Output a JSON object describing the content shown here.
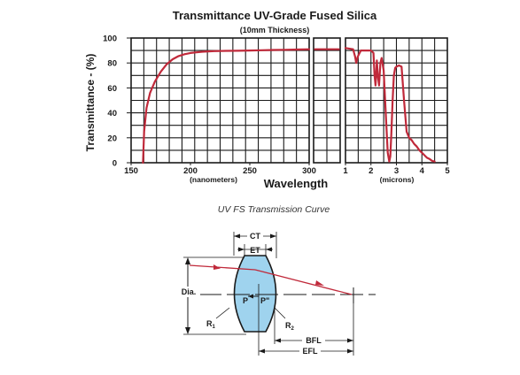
{
  "chart_data": {
    "type": "line",
    "title": "Transmittance UV-Grade Fused Silica",
    "subtitle": "(10mm Thickness)",
    "xlabel": "Wavelength",
    "ylabel": "Transmittance - (%)",
    "grid": true,
    "colors": {
      "curve": "#c0293a",
      "grid": "#1a1a1a"
    },
    "ylim": [
      0,
      100
    ],
    "y_ticks": [
      "0",
      "20",
      "40",
      "60",
      "80",
      "100"
    ],
    "panels": [
      {
        "name": "nanometers",
        "xlim": [
          150,
          300
        ],
        "x_ticks": [
          "150",
          "200",
          "250",
          "300"
        ],
        "unit_label": "(nanometers)",
        "x": [
          160,
          161,
          163,
          166,
          170,
          175,
          180,
          185,
          190,
          195,
          200,
          205,
          210,
          215,
          220,
          230,
          240,
          250,
          260,
          270,
          280,
          290,
          300
        ],
        "y": [
          0,
          25,
          44,
          56,
          65,
          73,
          79,
          83,
          85.5,
          87,
          88,
          88.5,
          89,
          89.3,
          89.5,
          89.7,
          89.8,
          90,
          90.2,
          90.4,
          90.6,
          90.8,
          91
        ]
      },
      {
        "name": "gap",
        "xlim": [
          300,
          400
        ],
        "x_ticks": [],
        "unit_label": "",
        "x": [
          305,
          395
        ],
        "y": [
          91,
          91
        ]
      },
      {
        "name": "microns",
        "xlim": [
          1,
          5
        ],
        "x_ticks": [
          "1",
          "2",
          "3",
          "4",
          "5"
        ],
        "unit_label": "(microns)",
        "x": [
          1.0,
          1.3,
          1.38,
          1.42,
          1.48,
          1.6,
          2.0,
          2.1,
          2.14,
          2.18,
          2.2,
          2.23,
          2.27,
          2.32,
          2.37,
          2.42,
          2.5,
          2.6,
          2.66,
          2.72,
          2.76,
          2.8,
          2.85,
          2.9,
          2.95,
          3.0,
          3.1,
          3.2,
          3.3,
          3.4,
          3.5,
          3.6,
          3.7,
          3.8,
          3.9,
          4.0,
          4.1,
          4.2,
          4.3,
          4.4,
          4.5
        ],
        "y": [
          92,
          91,
          85,
          80,
          85,
          90,
          90,
          88,
          70,
          62,
          68,
          82,
          70,
          62,
          80,
          84,
          74,
          32,
          8,
          1,
          5,
          24,
          50,
          70,
          76,
          77,
          78,
          77,
          50,
          25,
          20,
          18,
          15,
          13,
          10,
          8,
          6,
          4,
          3,
          1.5,
          1
        ]
      }
    ]
  },
  "caption": "UV FS Transmission Curve",
  "lens_diagram": {
    "labels": {
      "ct": "CT",
      "et": "ET",
      "dia": "Dia.",
      "p": "P",
      "p_prime": "P\"",
      "r1_base": "R",
      "r1_sub": "1",
      "r2_base": "R",
      "r2_sub": "2",
      "bfl": "BFL",
      "efl": "EFL"
    },
    "colors": {
      "lens_fill": "#9fd3ee",
      "ray": "#c0293a",
      "lines": "#1a1a1a"
    }
  }
}
